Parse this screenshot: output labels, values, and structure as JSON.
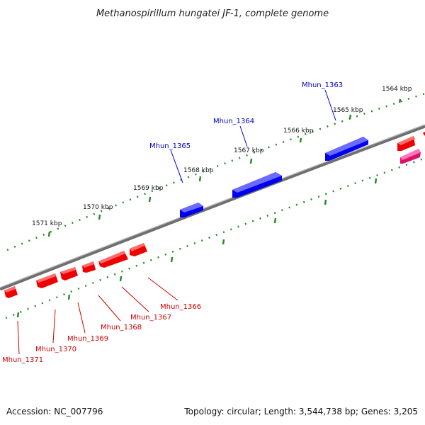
{
  "title": "Methanospirillum hungatei JF-1, complete genome",
  "footer": {
    "accession": "Accession: NC_007796",
    "topology": "Topology: circular; Length: 3,544,738 bp; Genes: 3,205"
  },
  "colors": {
    "backbone": "#7f7f7f",
    "forward_gene": "#0000ee",
    "reverse_gene": "#ee0000",
    "other_gene": "#ee1177",
    "ticks": "#2a8a2a",
    "forward_label": "#0000cc",
    "reverse_label": "#cc0000"
  },
  "ruler_ticks": [
    {
      "label": "1564 kbp"
    },
    {
      "label": "1565 kbp"
    },
    {
      "label": "1566 kbp"
    },
    {
      "label": "1567 kbp"
    },
    {
      "label": "1568 kbp"
    },
    {
      "label": "1569 kbp"
    },
    {
      "label": "1570 kbp"
    },
    {
      "label": "1571 kbp"
    }
  ],
  "forward_genes": [
    {
      "label": "Mhun_1363"
    },
    {
      "label": "Mhun_1364"
    },
    {
      "label": "Mhun_1365"
    }
  ],
  "reverse_genes": [
    {
      "label": "Mhun_1366"
    },
    {
      "label": "Mhun_1367"
    },
    {
      "label": "Mhun_1368"
    },
    {
      "label": "Mhun_1369"
    },
    {
      "label": "Mhun_1370"
    },
    {
      "label": "Mhun_1371"
    }
  ]
}
